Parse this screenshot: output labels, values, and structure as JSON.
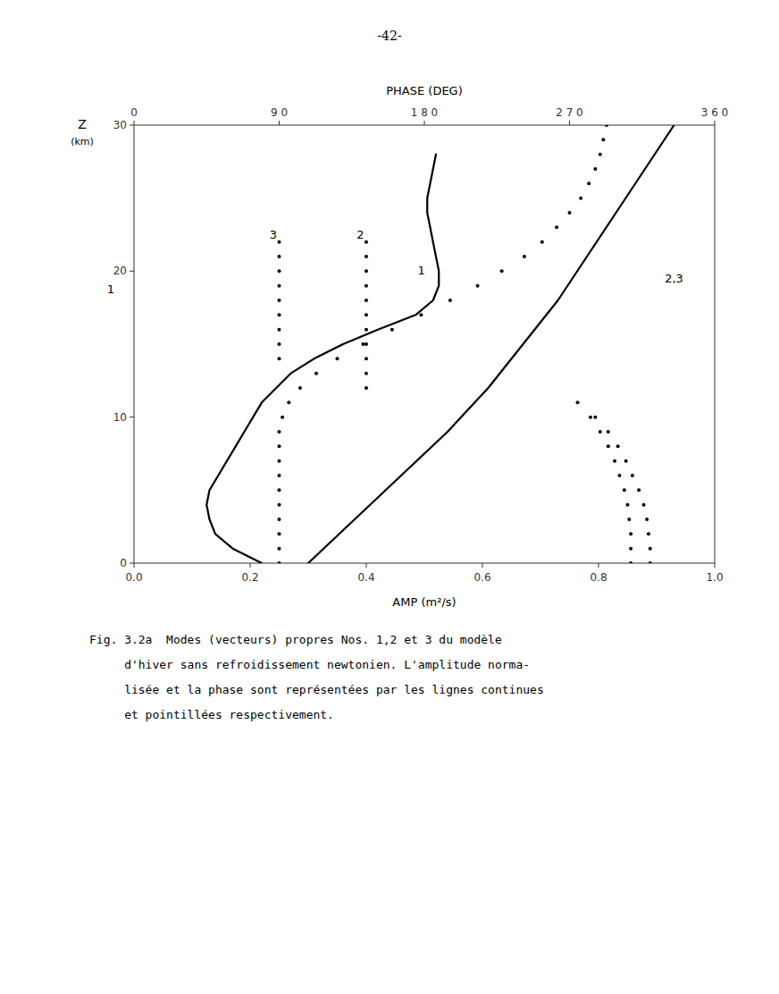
{
  "chart_data": {
    "type": "line",
    "title": "-42-",
    "xlabel": "AMP (m²/s)",
    "x2label": "PHASE (DEG)",
    "ylabel": "Z\n(km)",
    "xlim": [
      0.0,
      1.0
    ],
    "xticks": [
      {
        "value": 0.0,
        "label": "0.0"
      },
      0.2,
      0.4,
      0.6,
      0.8,
      {
        "value": 1.0,
        "label": "1.0"
      }
    ],
    "x2lim": [
      0.0,
      360.0
    ],
    "x2ticks": [
      0,
      {
        "value": 90,
        "label": "9 0"
      },
      {
        "value": 180,
        "label": "1 8 0"
      },
      {
        "value": 270,
        "label": "2 7 0"
      },
      {
        "value": 360,
        "label": "3 6 0"
      }
    ],
    "ylim": [
      0,
      30
    ],
    "yticks": [
      0,
      10,
      20,
      30
    ],
    "grid": false,
    "series": [
      {
        "type": "line",
        "line_style": "solid",
        "color": "#000000",
        "x": [
          0.22,
          0.17,
          0.14,
          0.13,
          0.125,
          0.13,
          0.145,
          0.16,
          0.175,
          0.19,
          0.205,
          0.22,
          0.245,
          0.27,
          0.31,
          0.36,
          0.42,
          0.485,
          0.515,
          0.525,
          0.525,
          0.52,
          0.515,
          0.51,
          0.505,
          0.505,
          0.51,
          0.515,
          0.52
        ],
        "values": [
          0,
          1,
          2,
          3,
          4,
          5,
          6,
          7,
          8,
          9,
          10,
          11,
          12,
          13,
          14,
          15,
          16,
          17,
          18,
          19,
          20,
          21,
          22,
          23,
          24,
          25,
          26,
          27,
          28
        ]
      },
      {
        "type": "line",
        "line_style": "solid",
        "color": "#000000",
        "x": [
          0.3,
          0.38,
          0.46,
          0.54,
          0.61,
          0.67,
          0.73,
          0.78,
          0.83,
          0.88,
          0.93
        ],
        "values": [
          0,
          3,
          6,
          9,
          12,
          15,
          18,
          21,
          24,
          27,
          30
        ]
      },
      {
        "type": "scatter",
        "marker": "dot",
        "color": "#000000",
        "axis": "x2",
        "x": [
          90,
          90,
          90,
          90,
          90,
          90,
          90,
          90,
          90,
          90,
          92,
          96,
          103,
          113,
          126,
          142,
          160,
          178,
          196,
          213,
          228,
          242,
          253,
          262,
          270,
          277,
          282,
          286,
          289,
          291,
          293
        ],
        "values": [
          0,
          1,
          2,
          3,
          4,
          5,
          6,
          7,
          8,
          9,
          10,
          11,
          12,
          13,
          14,
          15,
          16,
          17,
          18,
          19,
          20,
          21,
          22,
          23,
          24,
          25,
          26,
          27,
          28,
          29,
          30
        ]
      },
      {
        "type": "scatter",
        "marker": "dot",
        "color": "#000000",
        "axis": "x2",
        "x": [
          144,
          144,
          144,
          144,
          144,
          144,
          144,
          144,
          144,
          144,
          144
        ],
        "values": [
          12,
          13,
          14,
          15,
          16,
          17,
          18,
          19,
          20,
          21,
          22
        ]
      },
      {
        "type": "scatter",
        "marker": "dot",
        "color": "#000000",
        "axis": "x2",
        "x": [
          90,
          90,
          90,
          90,
          90,
          90,
          90,
          90,
          90
        ],
        "values": [
          14,
          15,
          16,
          17,
          18,
          19,
          20,
          21,
          22
        ]
      },
      {
        "type": "scatter",
        "marker": "dot",
        "color": "#000000",
        "axis": "x2",
        "x": [
          308,
          308,
          308,
          307,
          306,
          304,
          301,
          298,
          294,
          289,
          283,
          275
        ],
        "values": [
          0,
          1,
          2,
          3,
          4,
          5,
          6,
          7,
          8,
          9,
          10,
          11
        ]
      },
      {
        "type": "scatter",
        "marker": "dot",
        "color": "#000000",
        "axis": "x2",
        "x": [
          320,
          320,
          319,
          318,
          316,
          313,
          309,
          305,
          300,
          294,
          286
        ],
        "values": [
          0,
          1,
          2,
          3,
          4,
          5,
          6,
          7,
          8,
          9,
          10
        ]
      }
    ],
    "annotations": [
      {
        "text": "3",
        "x": 0.24,
        "y": 22.2
      },
      {
        "text": "2",
        "x": 0.39,
        "y": 22.2
      },
      {
        "text": "1",
        "x": 0.495,
        "y": 19.8
      },
      {
        "text": "2,3",
        "x": 0.93,
        "y": 19.2
      },
      {
        "text": "1",
        "x": -0.04,
        "y": 18.5
      }
    ],
    "caption": [
      "Fig. 3.2a  Modes (vecteurs) propres Nos. 1,2 et 3 du modèle",
      "     d'hiver sans refroidissement newtonien. L'amplitude norma-",
      "     lisée et la phase sont représentées par les lignes continues",
      "     et pointillées respectivement."
    ]
  }
}
